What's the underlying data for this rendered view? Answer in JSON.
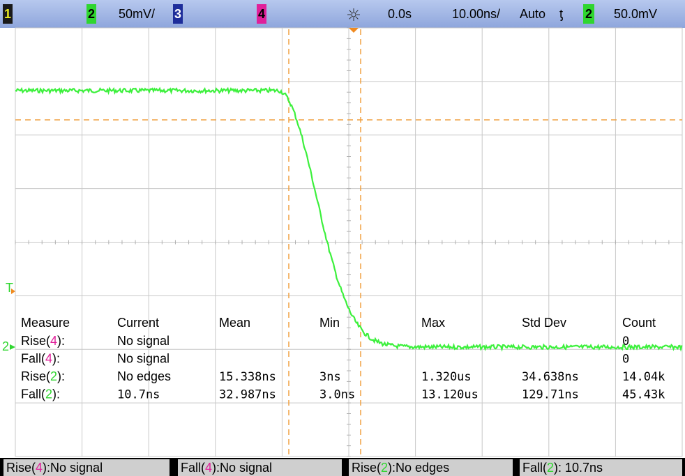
{
  "top_bar": {
    "ch1": "1",
    "ch2": "2",
    "ch2_scale": "50mV/",
    "ch3": "3",
    "ch4": "4",
    "time_delay": "0.0s",
    "time_scale": "10.00ns/",
    "trigger_mode": "Auto",
    "trigger_slope": "ƫ",
    "trigger_source": "2",
    "trigger_level": "50.0mV"
  },
  "markers": {
    "trigger": "T",
    "ch2": "2"
  },
  "channel_colors": {
    "2": "#2fd62f",
    "4": "#e0209a"
  },
  "measurements": {
    "headers": [
      "Measure",
      "Current",
      "Mean",
      "Min",
      "Max",
      "Std Dev",
      "Count"
    ],
    "rows": [
      {
        "label": [
          "Rise(",
          "4",
          "):"
        ],
        "current": "No signal",
        "count": "0"
      },
      {
        "label": [
          "Fall(",
          "4",
          "):"
        ],
        "current": "No signal",
        "count": "0"
      },
      {
        "label": [
          "Rise(",
          "2",
          "):"
        ],
        "current": "No edges",
        "mean": "15.338ns",
        "min": "3ns",
        "max": "1.320us",
        "std_dev": "34.638ns",
        "count": "14.04k"
      },
      {
        "label": [
          "Fall(",
          "2",
          "):"
        ],
        "current": "10.7ns",
        "mean": "32.987ns",
        "min": "3.0ns",
        "max": "13.120us",
        "std_dev": "129.71ns",
        "count": "45.43k"
      }
    ]
  },
  "bottom_bar": [
    [
      "Rise(",
      "4",
      "):No signal"
    ],
    [
      "Fall(",
      "4",
      "):No signal"
    ],
    [
      "Rise(",
      "2",
      "):No edges"
    ],
    [
      "Fall(",
      "2",
      "): 10.7ns"
    ]
  ]
}
